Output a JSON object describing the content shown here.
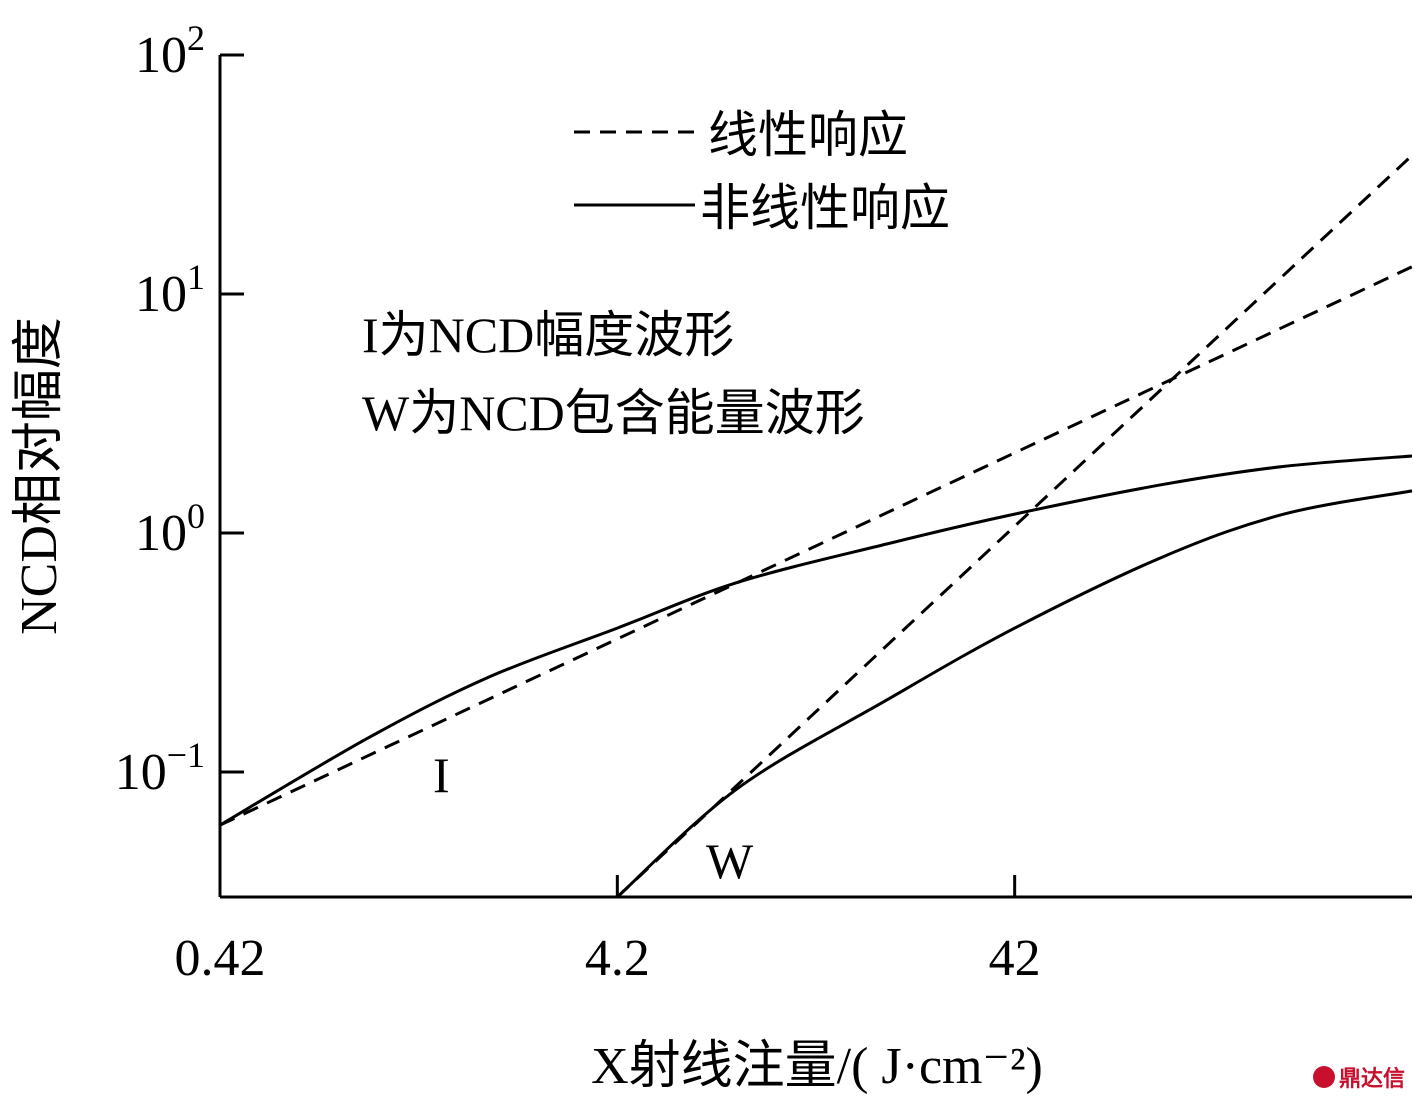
{
  "chart_data": {
    "type": "line",
    "x_scale": "log",
    "y_scale": "log",
    "xlim": [
      0.42,
      420
    ],
    "ylim": [
      0.03,
      100
    ],
    "xlabel": "X射线注量/( J·cm⁻²)",
    "ylabel": "NCD相对幅度",
    "x_ticks": [
      {
        "value": 0.42,
        "label": "0.42"
      },
      {
        "value": 4.2,
        "label": "4.2"
      },
      {
        "value": 42,
        "label": "42"
      }
    ],
    "y_ticks": [
      {
        "value": 0.1,
        "base": "10",
        "exp": "−1"
      },
      {
        "value": 1,
        "base": "10",
        "exp": "0"
      },
      {
        "value": 10,
        "base": "10",
        "exp": "1"
      },
      {
        "value": 100,
        "base": "10",
        "exp": "2"
      }
    ],
    "legend": [
      {
        "label": "线性响应",
        "style": "dashed"
      },
      {
        "label": "非线性响应",
        "style": "solid"
      }
    ],
    "annotations": [
      "I为NCD幅度波形",
      "W为NCD包含能量波形"
    ],
    "series": [
      {
        "label": "I",
        "style": "solid",
        "x": [
          0.42,
          1.0,
          2.0,
          4.2,
          8.4,
          20,
          42,
          100,
          200,
          420
        ],
        "y": [
          0.06,
          0.14,
          0.25,
          0.4,
          0.62,
          0.9,
          1.2,
          1.6,
          1.9,
          2.1
        ]
      },
      {
        "label": "I",
        "style": "dashed",
        "x": [
          0.42,
          420
        ],
        "y": [
          0.06,
          13
        ]
      },
      {
        "label": "W",
        "style": "solid",
        "x": [
          4.2,
          8.4,
          20,
          42,
          100,
          200,
          420
        ],
        "y": [
          0.03,
          0.085,
          0.2,
          0.4,
          0.8,
          1.2,
          1.5
        ]
      },
      {
        "label": "W",
        "style": "dashed",
        "x": [
          4.2,
          420
        ],
        "y": [
          0.03,
          38
        ]
      }
    ],
    "colors": {
      "lines": "#000000",
      "background": "#ffffff"
    }
  },
  "watermark": "鼎达信"
}
